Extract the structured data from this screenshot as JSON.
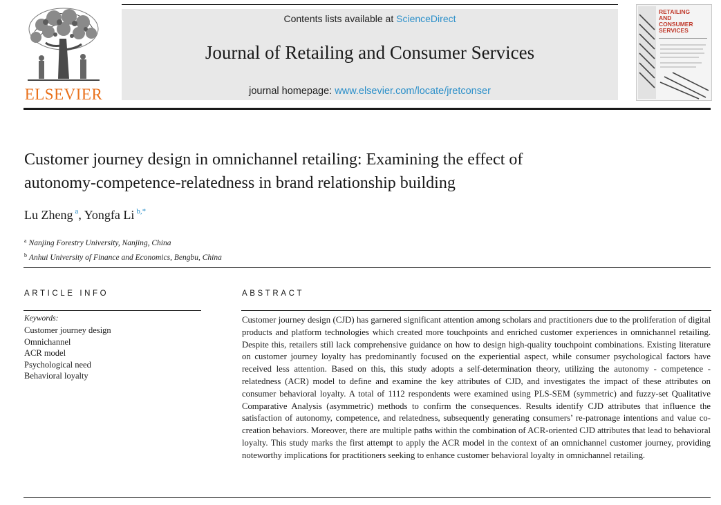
{
  "publisher": {
    "name": "ELSEVIER"
  },
  "header": {
    "contents_prefix": "Contents lists available at ",
    "contents_link": "ScienceDirect",
    "journal_title": "Journal of Retailing and Consumer Services",
    "homepage_prefix": "journal homepage: ",
    "homepage_url": "www.elsevier.com/locate/jretconser"
  },
  "cover": {
    "title": "RETAILING\nAND\nCONSUMER\nSERVICES"
  },
  "article": {
    "title_line1": "Customer journey design in omnichannel retailing: Examining the effect of",
    "title_line2": "autonomy-competence-relatedness in brand relationship building",
    "authors": [
      {
        "name": "Lu Zheng",
        "sup": "a"
      },
      {
        "name": "Yongfa Li",
        "sup": "b,*"
      }
    ],
    "author_separator": ", ",
    "affiliations": [
      {
        "mark": "a",
        "text": "Nanjing Forestry University, Nanjing, China"
      },
      {
        "mark": "b",
        "text": "Anhui University of Finance and Economics, Bengbu, China"
      }
    ]
  },
  "article_info": {
    "heading": "ARTICLE INFO",
    "keywords_label": "Keywords:",
    "keywords": [
      "Customer journey design",
      "Omnichannel",
      "ACR model",
      "Psychological need",
      "Behavioral loyalty"
    ]
  },
  "abstract": {
    "heading": "ABSTRACT",
    "text": "Customer journey design (CJD) has garnered significant attention among scholars and practitioners due to the proliferation of digital products and platform technologies which created more touchpoints and enriched customer experiences in omnichannel retailing. Despite this, retailers still lack comprehensive guidance on how to design high-quality touchpoint combinations. Existing literature on customer journey loyalty has predominantly focused on the experiential aspect, while consumer psychological factors have received less attention. Based on this, this study adopts a self-determination theory, utilizing the autonomy - competence - relatedness (ACR) model to define and examine the key attributes of CJD, and investigates the impact of these attributes on consumer behavioral loyalty. A total of 1112 respondents were examined using PLS-SEM (symmetric) and fuzzy-set Qualitative Comparative Analysis (asymmetric) methods to confirm the consequences. Results identify CJD attributes that influence the satisfaction of autonomy, competence, and relatedness, subsequently generating consumers’ re-patronage intentions and value co-creation behaviors. Moreover, there are multiple paths within the combination of ACR-oriented CJD attributes that lead to behavioral loyalty. This study marks the first attempt to apply the ACR model in the context of an omnichannel customer journey, providing noteworthy implications for practitioners seeking to enhance customer behavioral loyalty in omnichannel retailing."
  },
  "colors": {
    "link": "#2b8fc9",
    "elsevier_orange": "#e9711c",
    "banner_bg": "#e8e8e8"
  }
}
